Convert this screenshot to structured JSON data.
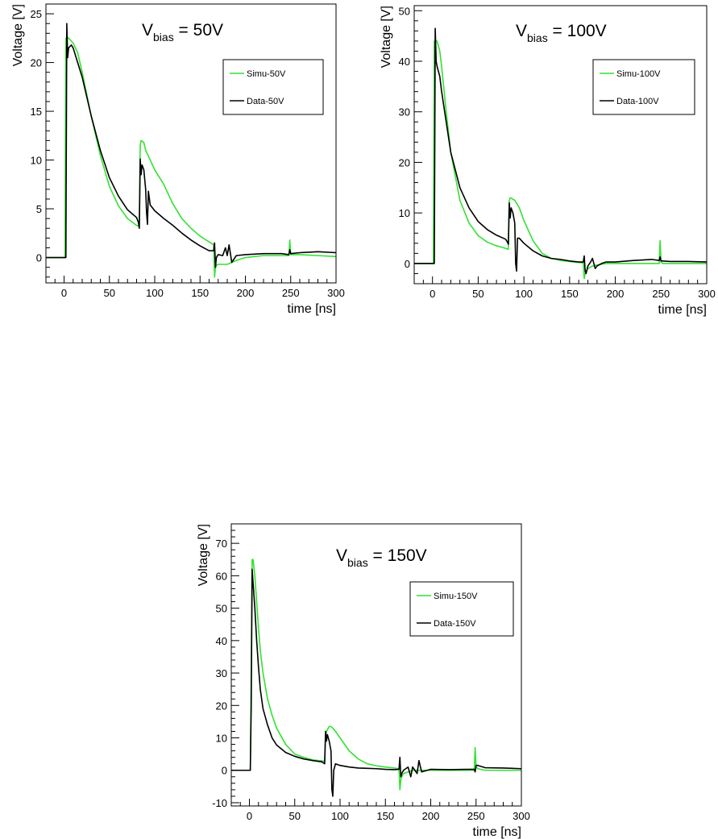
{
  "chart_data": [
    {
      "type": "line",
      "xlabel": "time [ns]",
      "ylabel": "Voltage [V]",
      "xlim": [
        -20,
        300
      ],
      "ylim": [
        -2.6,
        26
      ],
      "xticks": [
        0,
        50,
        100,
        150,
        200,
        250,
        300
      ],
      "yticks": [
        0,
        5,
        10,
        15,
        20,
        25
      ],
      "annotation": {
        "main": "V",
        "sub": "bias",
        "rest": " = 50V"
      },
      "legend": {
        "position": "top-right"
      },
      "series": [
        {
          "name": "Simu-50V",
          "color": "#33e133",
          "x": [
            -20,
            0,
            1,
            2,
            5,
            10,
            15,
            20,
            30,
            40,
            50,
            60,
            70,
            80,
            83,
            84,
            85,
            88,
            90,
            95,
            100,
            110,
            120,
            130,
            140,
            150,
            160,
            165,
            166,
            167,
            168,
            170,
            175,
            180,
            190,
            200,
            220,
            240,
            248,
            249,
            250,
            252,
            260,
            280,
            300
          ],
          "y": [
            0,
            0,
            0,
            22.5,
            22.5,
            22,
            21,
            19,
            14.5,
            10.5,
            7.3,
            5.3,
            4,
            3.3,
            3.2,
            11.5,
            12,
            11.8,
            11,
            10,
            9,
            7.5,
            5.5,
            4,
            3,
            2.2,
            1.6,
            1.3,
            -2,
            -1,
            -0.8,
            -0.7,
            -0.7,
            -0.7,
            -0.3,
            0,
            0.2,
            0.2,
            0.2,
            1.8,
            0.3,
            0.3,
            0.3,
            0.2,
            0.1
          ]
        },
        {
          "name": "Data-50V",
          "color": "#000000",
          "x": [
            -20,
            0,
            2,
            3,
            4,
            5,
            8,
            10,
            15,
            20,
            30,
            40,
            50,
            60,
            70,
            80,
            82,
            83,
            84,
            85,
            86,
            88,
            90,
            91,
            92,
            93,
            95,
            100,
            110,
            120,
            130,
            140,
            150,
            160,
            165,
            166,
            167,
            168,
            170,
            175,
            178,
            180,
            182,
            185,
            190,
            200,
            220,
            240,
            248,
            249,
            250,
            260,
            280,
            300
          ],
          "y": [
            0,
            0,
            0,
            24,
            20.5,
            21.5,
            21.8,
            21.5,
            20,
            18.5,
            14.5,
            11,
            8.2,
            6.3,
            4.9,
            4.1,
            3.6,
            3.0,
            10.1,
            8.5,
            9.5,
            9,
            7,
            4.6,
            3.4,
            6.8,
            5.4,
            4.8,
            4,
            3.3,
            2.5,
            1.8,
            1.2,
            0.7,
            0.7,
            1.5,
            -1,
            0,
            0.3,
            0.2,
            1,
            0.2,
            1.3,
            -0.5,
            0.2,
            0.3,
            0.4,
            0.4,
            0.3,
            0.8,
            0.4,
            0.5,
            0.6,
            0.5
          ]
        }
      ]
    },
    {
      "type": "line",
      "xlabel": "time [ns]",
      "ylabel": "Voltage [V]",
      "xlim": [
        -20,
        300
      ],
      "ylim": [
        -4,
        51
      ],
      "xticks": [
        0,
        50,
        100,
        150,
        200,
        250,
        300
      ],
      "yticks": [
        0,
        10,
        20,
        30,
        40,
        50
      ],
      "annotation": {
        "main": "V",
        "sub": "bias",
        "rest": " = 100V"
      },
      "legend": {
        "position": "top-right"
      },
      "series": [
        {
          "name": "Simu-100V",
          "color": "#33e133",
          "x": [
            -20,
            0,
            1,
            2,
            5,
            8,
            10,
            15,
            20,
            30,
            40,
            50,
            60,
            70,
            80,
            83,
            84,
            85,
            90,
            95,
            100,
            110,
            120,
            130,
            140,
            150,
            160,
            165,
            166,
            167,
            168,
            170,
            175,
            180,
            190,
            200,
            220,
            240,
            248,
            249,
            250,
            252,
            260,
            280,
            300
          ],
          "y": [
            0,
            0,
            0,
            44,
            44,
            42,
            39,
            30,
            22,
            12.5,
            8,
            5.5,
            4.2,
            3.5,
            3,
            2.8,
            12.5,
            13,
            12.5,
            11,
            8.5,
            4.5,
            2,
            1,
            0.6,
            0.4,
            0.2,
            0.1,
            -3,
            -2,
            -1.5,
            -1,
            -0.5,
            -0.3,
            0,
            0,
            0,
            0,
            0,
            4.5,
            0.3,
            0,
            0,
            0,
            0
          ]
        },
        {
          "name": "Data-100V",
          "color": "#000000",
          "x": [
            -20,
            0,
            2,
            3,
            4,
            5,
            8,
            10,
            15,
            20,
            30,
            40,
            50,
            60,
            70,
            80,
            82,
            83,
            84,
            85,
            86,
            88,
            90,
            91,
            92,
            93,
            95,
            100,
            110,
            120,
            130,
            140,
            150,
            160,
            165,
            166,
            167,
            168,
            170,
            173,
            175,
            178,
            180,
            185,
            190,
            200,
            220,
            240,
            248,
            249,
            250,
            252,
            260,
            280,
            300
          ],
          "y": [
            0,
            0,
            0,
            46.5,
            40,
            39,
            37,
            34,
            28,
            22,
            15,
            11,
            8.3,
            6.7,
            5.6,
            4.8,
            4.2,
            3.8,
            12,
            9,
            11,
            10,
            8,
            0,
            -1.5,
            5,
            5,
            4,
            2.5,
            1.5,
            1,
            0.8,
            0.5,
            0.3,
            0.3,
            1.5,
            -1.5,
            -2,
            -0.5,
            0.3,
            1,
            -1,
            -0.5,
            0,
            0.3,
            0.3,
            0.6,
            0.8,
            0.6,
            1.3,
            0.5,
            0.5,
            0.4,
            0.4,
            0.3
          ]
        }
      ]
    },
    {
      "type": "line",
      "xlabel": "time [ns]",
      "ylabel": "Voltage [V]",
      "xlim": [
        -20,
        300
      ],
      "ylim": [
        -11,
        76
      ],
      "xticks": [
        0,
        50,
        100,
        150,
        200,
        250,
        300
      ],
      "yticks": [
        -10,
        0,
        10,
        20,
        30,
        40,
        50,
        60,
        70
      ],
      "annotation": {
        "main": "V",
        "sub": "bias",
        "rest": " = 150V"
      },
      "legend": {
        "position": "top-right"
      },
      "series": [
        {
          "name": "Simu-150V",
          "color": "#33e133",
          "x": [
            -20,
            0,
            1,
            2,
            3,
            4,
            6,
            8,
            10,
            12,
            15,
            20,
            25,
            30,
            40,
            50,
            60,
            70,
            80,
            83,
            84,
            85,
            88,
            90,
            92,
            95,
            100,
            110,
            120,
            130,
            140,
            150,
            160,
            165,
            166,
            167,
            168,
            170,
            175,
            180,
            190,
            200,
            220,
            240,
            248,
            249,
            250,
            252,
            260,
            280,
            300
          ],
          "y": [
            0,
            0,
            0,
            30,
            65,
            65,
            60,
            52,
            44,
            37,
            30,
            22,
            17,
            13,
            8,
            5,
            4,
            3.2,
            2.9,
            2.8,
            10,
            12,
            13.5,
            13.5,
            13,
            12,
            10,
            6,
            3.5,
            2,
            1.4,
            1,
            0.7,
            0.5,
            -6,
            -3,
            -2,
            -1,
            -0.5,
            0,
            0,
            0,
            0,
            0,
            0,
            7,
            1,
            0.5,
            0,
            0,
            0
          ]
        },
        {
          "name": "Data-150V",
          "color": "#000000",
          "x": [
            -20,
            0,
            1,
            2,
            3,
            4,
            6,
            8,
            10,
            12,
            15,
            20,
            25,
            30,
            40,
            50,
            60,
            70,
            80,
            82,
            83,
            84,
            85,
            86,
            88,
            90,
            91,
            92,
            93,
            95,
            100,
            110,
            120,
            130,
            140,
            150,
            160,
            165,
            166,
            167,
            168,
            170,
            175,
            178,
            180,
            185,
            187,
            190,
            200,
            220,
            240,
            248,
            249,
            250,
            252,
            260,
            280,
            300
          ],
          "y": [
            0,
            0,
            0,
            20,
            62,
            58,
            50,
            40,
            32,
            25,
            19,
            14,
            10,
            7.8,
            5.5,
            4.3,
            3.5,
            3,
            2.6,
            2.2,
            2,
            12,
            9,
            11,
            9,
            6,
            -6,
            -8,
            0,
            2,
            1.5,
            1,
            0.7,
            0.6,
            0.5,
            0.3,
            0.2,
            0.3,
            4,
            -2,
            -1,
            0,
            1,
            -2,
            1,
            -1,
            3,
            -0.5,
            0.3,
            0.2,
            0.3,
            0.3,
            -0.5,
            1.5,
            1.5,
            0.8,
            0.7,
            0.5
          ]
        }
      ]
    }
  ]
}
